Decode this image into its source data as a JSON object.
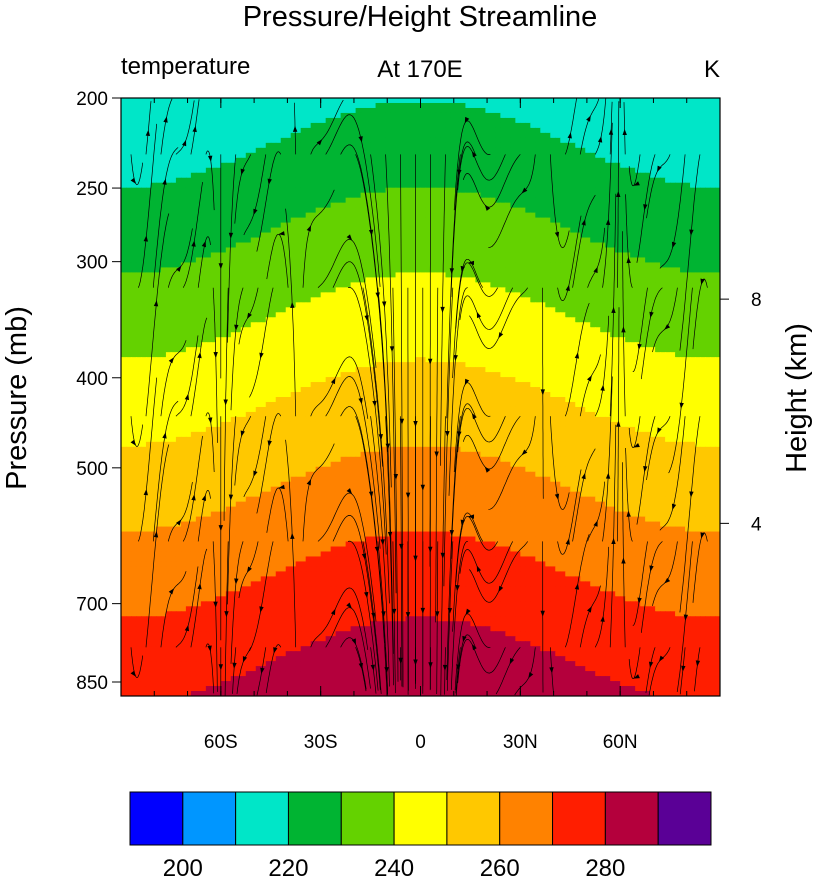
{
  "chart_data": {
    "type": "heatmap",
    "title": "Pressure/Height Streamline",
    "left_subtitle": "temperature",
    "center_subtitle": "At 170E",
    "right_subtitle": "K",
    "xlabel": "",
    "ylabel": "Pressure (mb)",
    "y2label": "Height (km)",
    "xlim": [
      -90,
      90
    ],
    "x_ticks": [
      {
        "value": -60,
        "label": "60S"
      },
      {
        "value": -30,
        "label": "30S"
      },
      {
        "value": 0,
        "label": "0"
      },
      {
        "value": 30,
        "label": "30N"
      },
      {
        "value": 60,
        "label": "60N"
      }
    ],
    "ylim": [
      880,
      200
    ],
    "y_scale": "log",
    "y_ticks": [
      200,
      250,
      300,
      400,
      500,
      700,
      850
    ],
    "y2_ticks": [
      8,
      4
    ],
    "contour_levels": [
      205,
      215,
      225,
      235,
      245,
      255,
      265,
      275,
      285,
      295
    ],
    "colorbar": {
      "labels": [
        "200",
        "220",
        "240",
        "260",
        "280"
      ],
      "colors": [
        "#0000ff",
        "#0096ff",
        "#00e6c8",
        "#00b432",
        "#64d200",
        "#ffff00",
        "#ffc800",
        "#ff8200",
        "#ff1e00",
        "#b4003c",
        "#5a0096"
      ]
    },
    "overlay": "streamlines"
  }
}
